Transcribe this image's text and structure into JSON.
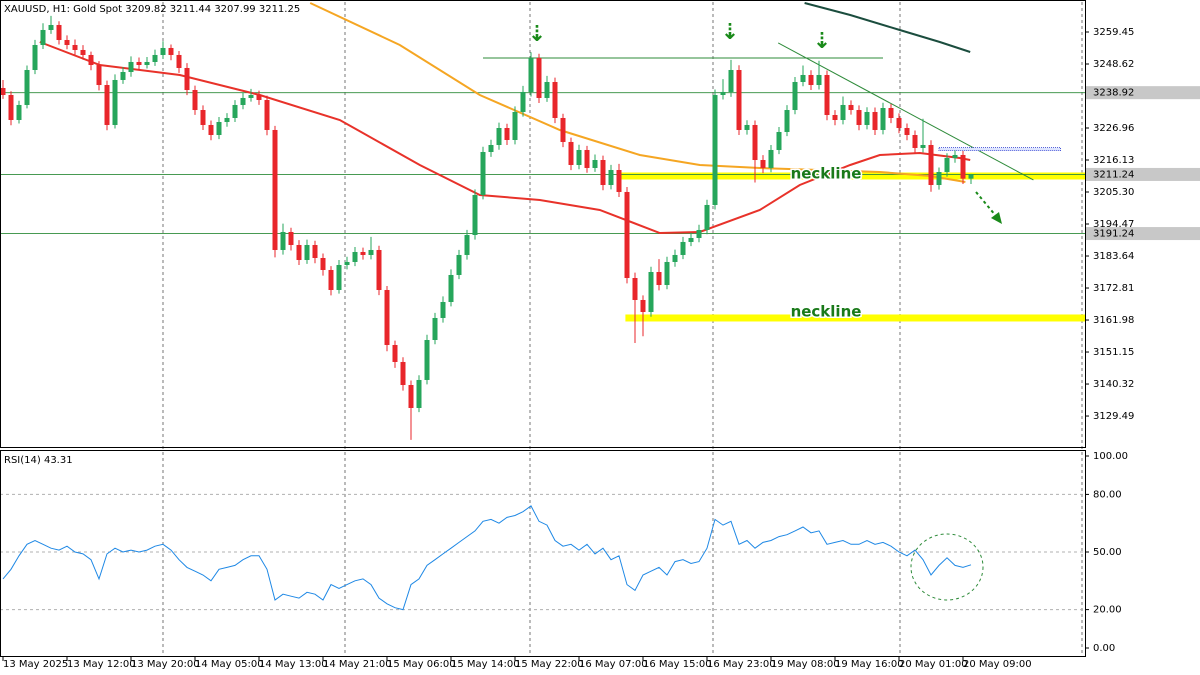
{
  "chart_data": {
    "type": "candlestick",
    "title": "XAUUSD, H1:  Gold Spot  3209.82 3211.44 3207.99 3211.25",
    "up_color": "#26a65b",
    "down_color": "#e8262b",
    "ylim": [
      3119.01,
      3269.6
    ],
    "yticks": [
      3259.45,
      3248.62,
      3226.96,
      3216.13,
      {
        "value": 3205.3,
        "label": "3205.30"
      },
      3194.47,
      3183.64,
      3172.81,
      3161.98,
      3151.15,
      3140.32,
      3129.49
    ],
    "categories": [
      "13 May 2025",
      null,
      null,
      null,
      null,
      null,
      null,
      null,
      "13 May 12:00",
      null,
      null,
      null,
      null,
      null,
      null,
      null,
      "13 May 20:00",
      null,
      null,
      null,
      null,
      null,
      null,
      null,
      "14 May 05:00",
      null,
      null,
      null,
      null,
      null,
      null,
      null,
      "14 May 13:00",
      null,
      null,
      null,
      null,
      null,
      null,
      null,
      "14 May 21:00",
      null,
      null,
      null,
      null,
      null,
      null,
      null,
      "15 May 06:00",
      null,
      null,
      null,
      null,
      null,
      null,
      null,
      "15 May 14:00",
      null,
      null,
      null,
      null,
      null,
      null,
      null,
      "15 May 22:00",
      null,
      null,
      null,
      null,
      null,
      null,
      null,
      "16 May 07:00",
      null,
      null,
      null,
      null,
      null,
      null,
      null,
      "16 May 15:00",
      null,
      null,
      null,
      null,
      null,
      null,
      null,
      "16 May 23:00",
      null,
      null,
      null,
      null,
      null,
      null,
      null,
      "19 May 08:00",
      null,
      null,
      null,
      null,
      null,
      null,
      null,
      "19 May 16:00",
      null,
      null,
      null,
      null,
      null,
      null,
      null,
      "20 May 01:00",
      null,
      null,
      null,
      null,
      null,
      null,
      null,
      "20 May 09:00",
      null
    ],
    "ohlc": [
      [
        3240.5,
        3243.2,
        3236.8,
        3238.13
      ],
      [
        3238.13,
        3239.4,
        3227.9,
        3229.67
      ],
      [
        3229.67,
        3236.2,
        3228.5,
        3234.75
      ],
      [
        3234.75,
        3248.1,
        3233.6,
        3246.59
      ],
      [
        3246.59,
        3256.8,
        3245.2,
        3255.05
      ],
      [
        3255.05,
        3262.4,
        3253.7,
        3260.13
      ],
      [
        3260.13,
        3264.9,
        3258.8,
        3261.82
      ],
      [
        3261.82,
        3263.1,
        3255.2,
        3256.74
      ],
      [
        3256.74,
        3258.3,
        3253.6,
        3255.05
      ],
      [
        3255.05,
        3256.9,
        3251.8,
        3253.36
      ],
      [
        3253.36,
        3255.0,
        3250.1,
        3251.67
      ],
      [
        3251.67,
        3252.8,
        3246.5,
        3248.28
      ],
      [
        3248.28,
        3249.6,
        3239.7,
        3241.51
      ],
      [
        3241.51,
        3243.0,
        3226.2,
        3227.98
      ],
      [
        3227.98,
        3245.1,
        3226.8,
        3243.21
      ],
      [
        3243.21,
        3247.6,
        3241.9,
        3245.91
      ],
      [
        3245.91,
        3251.2,
        3244.3,
        3249.3
      ],
      [
        3249.3,
        3250.8,
        3246.6,
        3248.28
      ],
      [
        3248.28,
        3251.0,
        3247.1,
        3249.3
      ],
      [
        3249.3,
        3253.5,
        3248.0,
        3251.67
      ],
      [
        3251.67,
        3256.3,
        3250.4,
        3254.04
      ],
      [
        3254.04,
        3255.2,
        3249.9,
        3251.67
      ],
      [
        3251.67,
        3253.0,
        3245.6,
        3247.27
      ],
      [
        3247.27,
        3248.9,
        3238.1,
        3239.82
      ],
      [
        3239.82,
        3241.3,
        3231.4,
        3233.05
      ],
      [
        3233.05,
        3234.6,
        3226.3,
        3227.98
      ],
      [
        3227.98,
        3229.5,
        3222.8,
        3224.59
      ],
      [
        3224.59,
        3230.7,
        3223.2,
        3228.99
      ],
      [
        3228.99,
        3232.0,
        3227.4,
        3230.35
      ],
      [
        3230.35,
        3236.4,
        3229.0,
        3234.75
      ],
      [
        3234.75,
        3239.0,
        3233.3,
        3237.12
      ],
      [
        3237.12,
        3240.2,
        3235.9,
        3238.13
      ],
      [
        3238.13,
        3239.6,
        3234.8,
        3236.44
      ],
      [
        3236.44,
        3237.9,
        3224.5,
        3226.29
      ],
      [
        3226.29,
        3227.7,
        3183.2,
        3185.68
      ],
      [
        3185.68,
        3194.6,
        3184.1,
        3191.77
      ],
      [
        3191.77,
        3193.2,
        3185.5,
        3187.37
      ],
      [
        3187.37,
        3189.0,
        3180.6,
        3182.29
      ],
      [
        3182.29,
        3189.2,
        3181.0,
        3187.37
      ],
      [
        3187.37,
        3188.8,
        3181.2,
        3182.97
      ],
      [
        3182.97,
        3184.5,
        3177.0,
        3178.91
      ],
      [
        3178.91,
        3180.2,
        3170.3,
        3172.14
      ],
      [
        3172.14,
        3182.3,
        3170.9,
        3180.6
      ],
      [
        3180.6,
        3183.4,
        3179.1,
        3181.62
      ],
      [
        3181.62,
        3186.7,
        3180.2,
        3185.0
      ],
      [
        3185.0,
        3186.5,
        3182.4,
        3183.99
      ],
      [
        3183.99,
        3190.1,
        3182.5,
        3185.68
      ],
      [
        3185.68,
        3187.1,
        3170.4,
        3172.14
      ],
      [
        3172.14,
        3173.5,
        3151.4,
        3153.53
      ],
      [
        3153.53,
        3155.0,
        3145.8,
        3147.78
      ],
      [
        3147.78,
        3149.4,
        3138.1,
        3139.99
      ],
      [
        3139.99,
        3141.5,
        3121.4,
        3132.21
      ],
      [
        3132.21,
        3143.3,
        3130.8,
        3141.69
      ],
      [
        3141.69,
        3157.0,
        3140.2,
        3155.22
      ],
      [
        3155.22,
        3164.4,
        3153.8,
        3162.67
      ],
      [
        3162.67,
        3170.0,
        3161.1,
        3168.08
      ],
      [
        3168.08,
        3179.1,
        3166.6,
        3177.22
      ],
      [
        3177.22,
        3185.7,
        3175.8,
        3183.99
      ],
      [
        3183.99,
        3192.5,
        3182.4,
        3190.75
      ],
      [
        3190.75,
        3206.2,
        3189.2,
        3204.29
      ],
      [
        3204.29,
        3220.6,
        3202.8,
        3218.84
      ],
      [
        3218.84,
        3223.0,
        3217.2,
        3221.21
      ],
      [
        3221.21,
        3228.8,
        3219.6,
        3226.96
      ],
      [
        3226.96,
        3228.4,
        3221.2,
        3222.9
      ],
      [
        3222.9,
        3234.3,
        3221.4,
        3232.38
      ],
      [
        3232.38,
        3241.2,
        3230.8,
        3239.15
      ],
      [
        3239.15,
        3252.6,
        3237.6,
        3250.65
      ],
      [
        3250.65,
        3252.1,
        3235.4,
        3237.12
      ],
      [
        3237.12,
        3244.6,
        3235.8,
        3242.53
      ],
      [
        3242.53,
        3244.0,
        3228.6,
        3230.35
      ],
      [
        3230.35,
        3231.8,
        3220.5,
        3222.23
      ],
      [
        3222.23,
        3223.7,
        3212.7,
        3214.44
      ],
      [
        3214.44,
        3221.3,
        3213.0,
        3219.52
      ],
      [
        3219.52,
        3220.9,
        3211.8,
        3213.43
      ],
      [
        3213.43,
        3218.0,
        3212.1,
        3216.13
      ],
      [
        3216.13,
        3217.6,
        3205.9,
        3207.67
      ],
      [
        3207.67,
        3214.5,
        3206.2,
        3212.75
      ],
      [
        3212.75,
        3214.8,
        3203.6,
        3205.31
      ],
      [
        3205.31,
        3207.0,
        3174.4,
        3176.2
      ],
      [
        3176.2,
        3178.0,
        3154.2,
        3168.76
      ],
      [
        3168.76,
        3170.3,
        3156.5,
        3164.7
      ],
      [
        3164.7,
        3180.0,
        3163.1,
        3178.23
      ],
      [
        3178.23,
        3182.6,
        3172.0,
        3173.83
      ],
      [
        3173.83,
        3183.4,
        3172.4,
        3181.62
      ],
      [
        3181.62,
        3185.8,
        3180.0,
        3183.99
      ],
      [
        3183.99,
        3190.1,
        3182.6,
        3188.39
      ],
      [
        3188.39,
        3191.5,
        3187.0,
        3189.74
      ],
      [
        3189.74,
        3194.2,
        3188.3,
        3192.45
      ],
      [
        3192.45,
        3202.7,
        3191.0,
        3200.91
      ],
      [
        3200.91,
        3240.0,
        3199.4,
        3238.13
      ],
      [
        3238.13,
        3243.5,
        3236.6,
        3239.15
      ],
      [
        3239.15,
        3250.0,
        3237.5,
        3246.59
      ],
      [
        3246.59,
        3248.2,
        3224.6,
        3226.29
      ],
      [
        3226.29,
        3229.6,
        3224.7,
        3227.98
      ],
      [
        3227.98,
        3229.5,
        3208.5,
        3216.13
      ],
      [
        3216.13,
        3217.8,
        3211.7,
        3213.43
      ],
      [
        3213.43,
        3221.2,
        3212.0,
        3219.52
      ],
      [
        3219.52,
        3227.3,
        3218.1,
        3225.61
      ],
      [
        3225.61,
        3234.7,
        3224.2,
        3233.05
      ],
      [
        3233.05,
        3244.2,
        3231.6,
        3242.53
      ],
      [
        3242.53,
        3248.1,
        3241.1,
        3244.9
      ],
      [
        3244.9,
        3246.5,
        3239.8,
        3241.51
      ],
      [
        3241.51,
        3249.7,
        3240.0,
        3244.9
      ],
      [
        3244.9,
        3246.4,
        3229.6,
        3231.36
      ],
      [
        3231.36,
        3233.0,
        3227.9,
        3229.67
      ],
      [
        3229.67,
        3237.6,
        3228.2,
        3234.75
      ],
      [
        3234.75,
        3236.3,
        3231.5,
        3233.05
      ],
      [
        3233.05,
        3234.6,
        3226.2,
        3227.98
      ],
      [
        3227.98,
        3234.0,
        3226.5,
        3232.38
      ],
      [
        3232.38,
        3233.9,
        3224.6,
        3226.29
      ],
      [
        3226.29,
        3235.5,
        3224.8,
        3233.73
      ],
      [
        3233.73,
        3235.1,
        3228.6,
        3230.35
      ],
      [
        3230.35,
        3231.9,
        3225.2,
        3226.96
      ],
      [
        3226.96,
        3228.5,
        3222.8,
        3224.59
      ],
      [
        3224.59,
        3226.1,
        3218.4,
        3220.2
      ],
      [
        3220.2,
        3230.1,
        3218.7,
        3221.21
      ],
      [
        3221.21,
        3222.8,
        3205.4,
        3207.67
      ],
      [
        3207.67,
        3213.6,
        3206.1,
        3212.07
      ],
      [
        3212.07,
        3218.4,
        3210.5,
        3216.81
      ],
      [
        3216.81,
        3219.4,
        3215.2,
        3217.83
      ],
      [
        3217.83,
        3219.2,
        3208.0,
        3209.82
      ],
      [
        3209.82,
        3211.44,
        3207.99,
        3211.25
      ]
    ],
    "overlays": [
      {
        "color": "#e8322a",
        "x": [
          4.6,
          12.1,
          22.1,
          32.1,
          42.1,
          52.1,
          59.6,
          67.1,
          74.6,
          82.1,
          87.1,
          94.6,
          99.6,
          105.9,
          109.6,
          114.6,
          119.6,
          120.9
        ],
        "values": [
          3256.07,
          3248.28,
          3244.9,
          3238.13,
          3229.67,
          3214.44,
          3204.29,
          3202.6,
          3199.22,
          3191.44,
          3191.77,
          3199.22,
          3207.67,
          3214.44,
          3217.83,
          3218.5,
          3216.81,
          3216.13
        ]
      },
      {
        "color": "#f5a623",
        "x": [
          38.4,
          49.6,
          59.6,
          69.6,
          79.6,
          87.1,
          94.6,
          102.1,
          109.6,
          115.9,
          120.3
        ],
        "values": [
          3269.26,
          3255.05,
          3238.13,
          3226.29,
          3217.83,
          3214.44,
          3213.43,
          3212.75,
          3212.07,
          3210.72,
          3208.69
        ]
      },
      {
        "color": "#1b4d3e",
        "x": [
          100.2,
          105.9,
          112.1,
          117.1,
          120.9
        ],
        "values": [
          3269.26,
          3265.2,
          3260.13,
          3256.07,
          3252.68
        ]
      }
    ],
    "hlines": [
      {
        "value": 3238.92,
        "color": "#2e8b3a"
      },
      {
        "value": 3211.24,
        "color": "#2e8b3a"
      },
      {
        "value": 3191.24,
        "color": "#2e8b3a"
      }
    ],
    "zones": [
      {
        "value": 3210.72,
        "label": "neckline",
        "x": [
          77,
          135.25
        ],
        "color": "#ffff00"
      },
      {
        "value": 3162.67,
        "label": "neckline",
        "x": [
          77.8,
          135.25
        ],
        "color": "#ffff00"
      }
    ],
    "segments": [
      {
        "color": "#2e8b3a",
        "x": [
          60,
          110
        ],
        "values": [
          3250.65,
          3250.65
        ]
      },
      {
        "color": "#2e8b3a",
        "x": [
          96.9,
          128.8
        ],
        "values": [
          3255.73,
          3209.37
        ]
      }
    ],
    "box": {
      "color": "#2233cc",
      "x": [
        117,
        132.2
      ],
      "value": 3219.8
    },
    "rsi": {
      "title": "RSI(14) 43.31",
      "color": "#1e88e5",
      "ylim": [
        0,
        100
      ],
      "yticks": [
        {
          "value": 100,
          "label": "100.00"
        },
        {
          "value": 80,
          "label": "80.00"
        },
        {
          "value": 50,
          "label": "50.00"
        },
        {
          "value": 20,
          "label": "20.00"
        },
        {
          "value": 0,
          "label": "0.00"
        }
      ],
      "levels": [
        80,
        50,
        20
      ],
      "values": [
        36,
        41,
        48,
        54,
        56,
        54,
        52,
        51,
        53,
        50,
        49,
        46,
        36,
        49,
        52,
        50,
        51,
        50,
        51,
        53,
        54,
        51,
        46,
        42,
        40,
        38,
        35,
        41,
        42,
        43,
        46,
        48,
        48,
        41,
        25,
        28,
        27,
        26,
        29,
        28,
        25,
        33,
        31,
        33,
        35,
        36,
        33,
        26,
        23,
        21,
        20,
        33,
        36,
        43,
        46,
        49,
        52,
        55,
        58,
        61,
        66,
        67,
        65,
        68,
        69,
        71,
        74,
        66,
        64,
        56,
        53,
        54,
        51,
        54,
        49,
        52,
        46,
        48,
        33,
        30,
        38,
        40,
        42,
        38,
        45,
        46,
        44,
        45,
        52,
        67,
        64,
        66,
        54,
        56,
        52,
        55,
        56,
        58,
        59,
        61,
        63,
        60,
        61,
        54,
        55,
        56,
        54,
        54,
        56,
        54,
        55,
        53,
        50,
        48,
        51,
        46,
        38,
        43,
        47,
        43,
        42,
        43.31
      ]
    }
  }
}
